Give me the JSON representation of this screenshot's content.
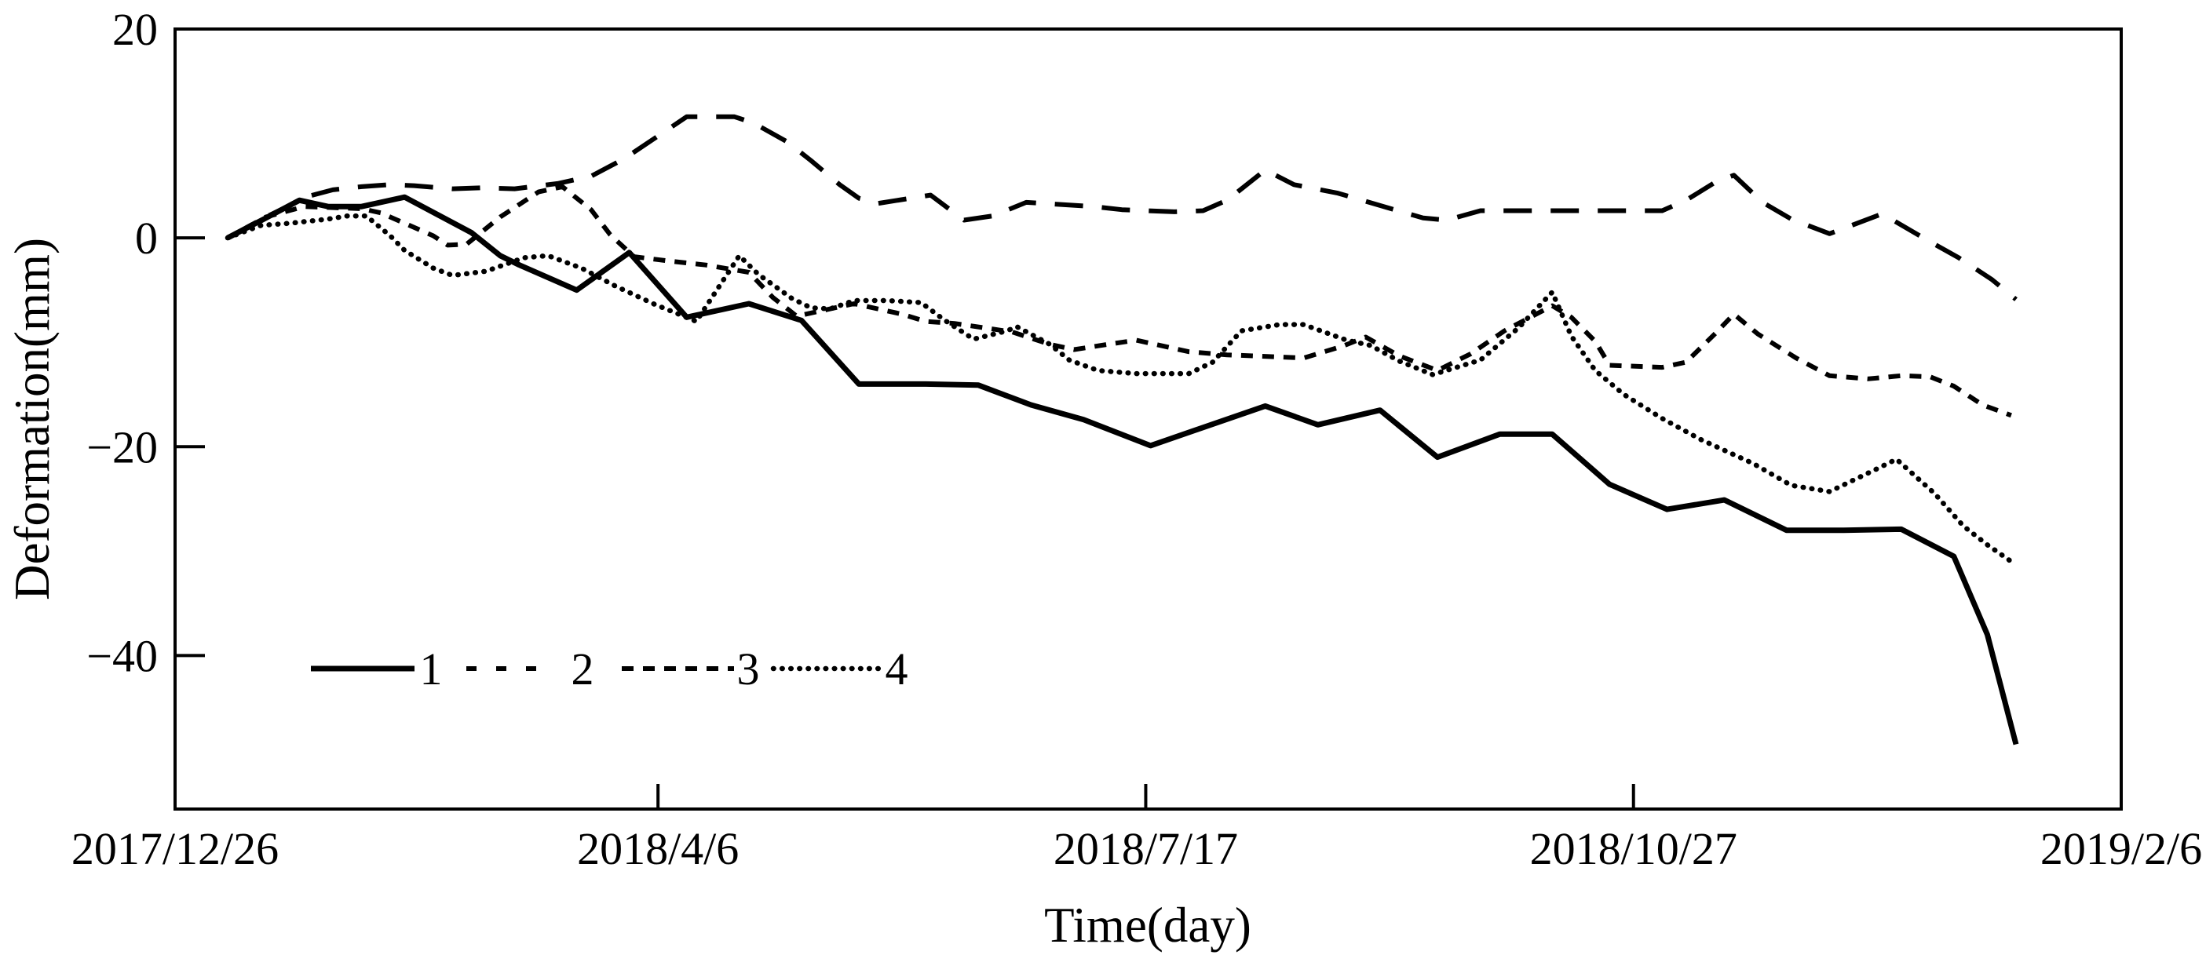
{
  "figure": {
    "background_color": "#ffffff",
    "line_color": "#000000"
  },
  "chart_data": {
    "type": "line",
    "title": "",
    "xlabel": "Time(day)",
    "ylabel": "Deformation(mm)",
    "grid": "off",
    "x_axis": {
      "tick_labels": [
        "2017/12/26",
        "2018/4/6",
        "2018/7/17",
        "2018/10/27",
        "2019/2/6"
      ],
      "tick_days": [
        0,
        101,
        203,
        305,
        407
      ],
      "range_days": [
        0,
        407
      ]
    },
    "y_axis": {
      "tick_labels": [
        "20",
        "0",
        "−20",
        "−40"
      ],
      "tick_values": [
        20,
        0,
        -20,
        -40
      ],
      "range": [
        -54.7,
        20
      ]
    },
    "legend": {
      "position": "inside-bottom-left",
      "entries": [
        {
          "label": "1",
          "style": "solid"
        },
        {
          "label": "2",
          "style": "long-dash"
        },
        {
          "label": "3",
          "style": "short-dash"
        },
        {
          "label": "4",
          "style": "dotted"
        }
      ]
    },
    "series": [
      {
        "name": "1",
        "style": "solid",
        "points": [
          [
            11,
            0
          ],
          [
            19,
            1.9
          ],
          [
            26,
            3.6
          ],
          [
            32,
            3.0
          ],
          [
            39,
            3.0
          ],
          [
            48,
            3.9
          ],
          [
            62,
            0.5
          ],
          [
            68,
            -1.7
          ],
          [
            72,
            -2.6
          ],
          [
            84,
            -5.0
          ],
          [
            95,
            -1.4
          ],
          [
            107,
            -7.6
          ],
          [
            120,
            -6.3
          ],
          [
            131,
            -7.9
          ],
          [
            143,
            -14.0
          ],
          [
            157,
            -14.0
          ],
          [
            168,
            -14.1
          ],
          [
            179,
            -16.0
          ],
          [
            190,
            -17.4
          ],
          [
            204,
            -19.9
          ],
          [
            228,
            -16.1
          ],
          [
            239,
            -17.9
          ],
          [
            252,
            -16.5
          ],
          [
            264,
            -21.0
          ],
          [
            277,
            -18.8
          ],
          [
            288,
            -18.8
          ],
          [
            300,
            -23.6
          ],
          [
            312,
            -26.0
          ],
          [
            324,
            -25.1
          ],
          [
            337,
            -28.0
          ],
          [
            349,
            -28.0
          ],
          [
            361,
            -27.9
          ],
          [
            372,
            -30.5
          ],
          [
            379,
            -38.0
          ],
          [
            385,
            -48.5
          ]
        ]
      },
      {
        "name": "2",
        "style": "long-dash",
        "points": [
          [
            11,
            0
          ],
          [
            19,
            2.0
          ],
          [
            28,
            4.0
          ],
          [
            33,
            4.6
          ],
          [
            39,
            4.9
          ],
          [
            45,
            5.1
          ],
          [
            50,
            5.0
          ],
          [
            58,
            4.7
          ],
          [
            64,
            4.8
          ],
          [
            71,
            4.7
          ],
          [
            80,
            5.2
          ],
          [
            87,
            5.9
          ],
          [
            94,
            7.6
          ],
          [
            107,
            11.6
          ],
          [
            117,
            11.6
          ],
          [
            121,
            11.0
          ],
          [
            128,
            9.2
          ],
          [
            133,
            7.4
          ],
          [
            139,
            5.1
          ],
          [
            143,
            3.8
          ],
          [
            147,
            3.3
          ],
          [
            158,
            4.1
          ],
          [
            165,
            1.7
          ],
          [
            171,
            2.1
          ],
          [
            178,
            3.4
          ],
          [
            192,
            3.0
          ],
          [
            198,
            2.7
          ],
          [
            209,
            2.5
          ],
          [
            215,
            2.6
          ],
          [
            220,
            3.6
          ],
          [
            228,
            6.5
          ],
          [
            234,
            5.1
          ],
          [
            243,
            4.3
          ],
          [
            261,
            1.9
          ],
          [
            266,
            1.7
          ],
          [
            273,
            2.6
          ],
          [
            284,
            2.6
          ],
          [
            300,
            2.6
          ],
          [
            311,
            2.6
          ],
          [
            316,
            3.6
          ],
          [
            322,
            5.3
          ],
          [
            326,
            6.0
          ],
          [
            332,
            3.4
          ],
          [
            338,
            1.8
          ],
          [
            346,
            0.4
          ],
          [
            357,
            2.3
          ],
          [
            366,
            -0.1
          ],
          [
            373,
            -1.9
          ],
          [
            380,
            -4.0
          ],
          [
            385,
            -5.9
          ]
        ]
      },
      {
        "name": "3",
        "style": "short-dash",
        "points": [
          [
            11,
            0
          ],
          [
            19,
            2.0
          ],
          [
            27,
            3.0
          ],
          [
            39,
            2.8
          ],
          [
            43,
            2.4
          ],
          [
            54,
            0.2
          ],
          [
            57,
            -0.7
          ],
          [
            61,
            -0.6
          ],
          [
            68,
            2.0
          ],
          [
            76,
            4.4
          ],
          [
            81,
            4.9
          ],
          [
            87,
            2.7
          ],
          [
            91,
            0.3
          ],
          [
            96,
            -1.8
          ],
          [
            103,
            -2.2
          ],
          [
            111,
            -2.6
          ],
          [
            120,
            -3.3
          ],
          [
            125,
            -5.7
          ],
          [
            130,
            -7.5
          ],
          [
            136,
            -6.9
          ],
          [
            142,
            -6.3
          ],
          [
            152,
            -7.3
          ],
          [
            157,
            -8.0
          ],
          [
            163,
            -8.2
          ],
          [
            175,
            -9.0
          ],
          [
            183,
            -10.2
          ],
          [
            188,
            -10.7
          ],
          [
            195,
            -10.2
          ],
          [
            201,
            -9.8
          ],
          [
            212,
            -10.9
          ],
          [
            220,
            -11.2
          ],
          [
            236,
            -11.5
          ],
          [
            244,
            -10.4
          ],
          [
            249,
            -9.5
          ],
          [
            256,
            -11.3
          ],
          [
            264,
            -12.7
          ],
          [
            271,
            -11.1
          ],
          [
            278,
            -8.9
          ],
          [
            288,
            -6.5
          ],
          [
            292,
            -7.6
          ],
          [
            297,
            -9.9
          ],
          [
            300,
            -12.2
          ],
          [
            311,
            -12.4
          ],
          [
            316,
            -11.9
          ],
          [
            322,
            -9.2
          ],
          [
            326,
            -7.3
          ],
          [
            331,
            -9.2
          ],
          [
            339,
            -11.5
          ],
          [
            346,
            -13.2
          ],
          [
            354,
            -13.5
          ],
          [
            361,
            -13.2
          ],
          [
            367,
            -13.3
          ],
          [
            372,
            -14.2
          ],
          [
            378,
            -16.0
          ],
          [
            384,
            -17.0
          ]
        ]
      },
      {
        "name": "4",
        "style": "dotted",
        "points": [
          [
            11,
            0
          ],
          [
            18,
            1.2
          ],
          [
            24,
            1.4
          ],
          [
            32,
            1.8
          ],
          [
            36,
            2.1
          ],
          [
            40,
            2.1
          ],
          [
            45,
            0.2
          ],
          [
            48,
            -1.2
          ],
          [
            54,
            -2.9
          ],
          [
            58,
            -3.6
          ],
          [
            65,
            -3.2
          ],
          [
            73,
            -1.9
          ],
          [
            78,
            -1.7
          ],
          [
            85,
            -2.9
          ],
          [
            92,
            -4.6
          ],
          [
            100,
            -6.3
          ],
          [
            109,
            -8.0
          ],
          [
            118,
            -1.7
          ],
          [
            122,
            -3.5
          ],
          [
            129,
            -5.8
          ],
          [
            133,
            -6.7
          ],
          [
            137,
            -6.8
          ],
          [
            142,
            -6.0
          ],
          [
            149,
            -6.0
          ],
          [
            156,
            -6.2
          ],
          [
            161,
            -7.9
          ],
          [
            167,
            -9.7
          ],
          [
            174,
            -8.9
          ],
          [
            176,
            -8.5
          ],
          [
            183,
            -10.2
          ],
          [
            187,
            -11.7
          ],
          [
            193,
            -12.7
          ],
          [
            201,
            -13.0
          ],
          [
            212,
            -13.0
          ],
          [
            217,
            -11.9
          ],
          [
            223,
            -8.9
          ],
          [
            231,
            -8.3
          ],
          [
            236,
            -8.3
          ],
          [
            245,
            -9.8
          ],
          [
            250,
            -10.3
          ],
          [
            256,
            -11.8
          ],
          [
            263,
            -13.1
          ],
          [
            273,
            -11.7
          ],
          [
            281,
            -8.6
          ],
          [
            288,
            -5.2
          ],
          [
            292,
            -9.4
          ],
          [
            297,
            -12.7
          ],
          [
            303,
            -15.0
          ],
          [
            311,
            -17.3
          ],
          [
            319,
            -19.3
          ],
          [
            330,
            -21.6
          ],
          [
            338,
            -23.7
          ],
          [
            346,
            -24.3
          ],
          [
            356,
            -22.1
          ],
          [
            360,
            -21.2
          ],
          [
            368,
            -24.5
          ],
          [
            374,
            -27.6
          ],
          [
            379,
            -29.4
          ],
          [
            384,
            -31.0
          ]
        ]
      }
    ]
  }
}
